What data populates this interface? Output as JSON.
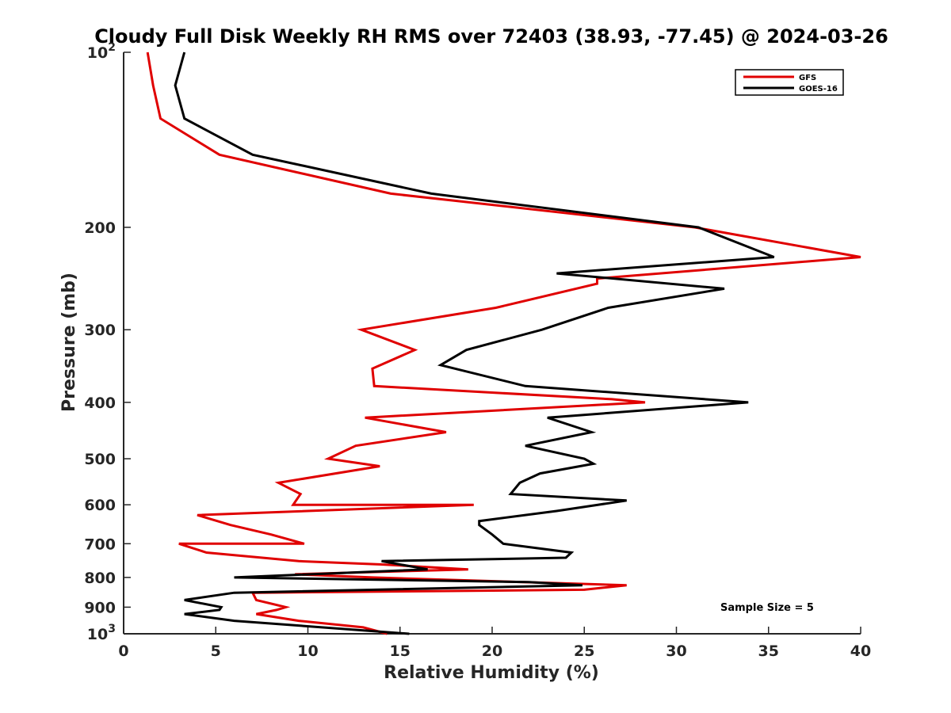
{
  "chart_data": {
    "type": "line",
    "title": "Cloudy Full Disk Weekly RH RMS over 72403 (38.93, -77.45) @ 2024-03-26",
    "xlabel": "Relative Humidity (%)",
    "ylabel": "Pressure (mb)",
    "xlim": [
      0,
      40
    ],
    "ylim": [
      100,
      1000
    ],
    "yscale": "log",
    "y_reversed": true,
    "grid": false,
    "legend_position": "top-right",
    "xticks": [
      0,
      5,
      10,
      15,
      20,
      25,
      30,
      35,
      40
    ],
    "xtick_labels": [
      "0",
      "5",
      "10",
      "15",
      "20",
      "25",
      "30",
      "35",
      "40"
    ],
    "yticks": [
      100,
      200,
      300,
      400,
      500,
      600,
      700,
      800,
      900,
      1000
    ],
    "ytick_labels": [
      {
        "base": "10",
        "exp": "2"
      },
      {
        "base": "200"
      },
      {
        "base": "300"
      },
      {
        "base": "400"
      },
      {
        "base": "500"
      },
      {
        "base": "600"
      },
      {
        "base": "700"
      },
      {
        "base": "800"
      },
      {
        "base": "900"
      },
      {
        "base": "10",
        "exp": "3"
      }
    ],
    "annotation": "Sample Size = 5",
    "series": [
      {
        "name": "GFS",
        "color": "#e00000",
        "points": [
          [
            1.3,
            100
          ],
          [
            1.6,
            114
          ],
          [
            2.0,
            130
          ],
          [
            5.2,
            150
          ],
          [
            14.5,
            175
          ],
          [
            31.0,
            200
          ],
          [
            40.0,
            225
          ],
          [
            25.7,
            245
          ],
          [
            25.7,
            250
          ],
          [
            20.2,
            275
          ],
          [
            12.9,
            300
          ],
          [
            15.8,
            325
          ],
          [
            13.5,
            350
          ],
          [
            13.6,
            375
          ],
          [
            26.5,
            395
          ],
          [
            28.3,
            400
          ],
          [
            13.1,
            425
          ],
          [
            17.5,
            450
          ],
          [
            12.6,
            475
          ],
          [
            11.1,
            500
          ],
          [
            13.9,
            515
          ],
          [
            8.4,
            550
          ],
          [
            9.6,
            575
          ],
          [
            9.2,
            600
          ],
          [
            19.0,
            600
          ],
          [
            4.0,
            625
          ],
          [
            5.8,
            650
          ],
          [
            8.0,
            675
          ],
          [
            9.8,
            700
          ],
          [
            3.0,
            700
          ],
          [
            4.5,
            725
          ],
          [
            9.5,
            750
          ],
          [
            14.0,
            760
          ],
          [
            18.7,
            775
          ],
          [
            9.3,
            790
          ],
          [
            13.5,
            800
          ],
          [
            27.3,
            825
          ],
          [
            25.0,
            840
          ],
          [
            7.0,
            850
          ],
          [
            7.2,
            875
          ],
          [
            8.8,
            900
          ],
          [
            8.3,
            910
          ],
          [
            7.2,
            925
          ],
          [
            9.5,
            950
          ],
          [
            13.0,
            975
          ],
          [
            14.3,
            1000
          ]
        ]
      },
      {
        "name": "GOES-16",
        "color": "#000000",
        "points": [
          [
            3.3,
            100
          ],
          [
            2.8,
            114
          ],
          [
            3.3,
            130
          ],
          [
            7.0,
            150
          ],
          [
            16.7,
            175
          ],
          [
            31.2,
            200
          ],
          [
            35.3,
            225
          ],
          [
            23.5,
            240
          ],
          [
            32.6,
            255
          ],
          [
            26.3,
            275
          ],
          [
            22.7,
            300
          ],
          [
            18.6,
            325
          ],
          [
            17.2,
            345
          ],
          [
            21.8,
            375
          ],
          [
            33.9,
            400
          ],
          [
            23.0,
            425
          ],
          [
            25.4,
            450
          ],
          [
            21.8,
            475
          ],
          [
            25.0,
            500
          ],
          [
            25.5,
            510
          ],
          [
            22.6,
            530
          ],
          [
            21.5,
            550
          ],
          [
            21.0,
            575
          ],
          [
            27.3,
            590
          ],
          [
            23.5,
            615
          ],
          [
            19.3,
            640
          ],
          [
            19.3,
            650
          ],
          [
            20.0,
            675
          ],
          [
            20.6,
            700
          ],
          [
            24.3,
            725
          ],
          [
            24.0,
            740
          ],
          [
            14.0,
            750
          ],
          [
            16.5,
            775
          ],
          [
            6.0,
            800
          ],
          [
            22.0,
            815
          ],
          [
            24.9,
            825
          ],
          [
            6.0,
            850
          ],
          [
            3.3,
            875
          ],
          [
            5.3,
            900
          ],
          [
            5.2,
            910
          ],
          [
            3.3,
            925
          ],
          [
            6.0,
            950
          ],
          [
            15.5,
            1000
          ]
        ]
      }
    ]
  }
}
